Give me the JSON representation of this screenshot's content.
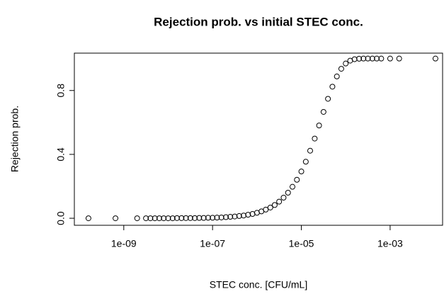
{
  "chart_data": {
    "type": "scatter",
    "title": "Rejection prob. vs initial STEC conc.",
    "x_label": "STEC conc.  [CFU/mL]",
    "y_label": "Rejection prob.",
    "xscale": "log",
    "color": "#000000",
    "xlim": [
      7.7e-11,
      0.0152
    ],
    "ylim": [
      -0.044,
      1.034
    ],
    "xticks": [
      {
        "value": 1e-09,
        "label": "1e-09"
      },
      {
        "value": 1e-07,
        "label": "1e-07"
      },
      {
        "value": 1e-05,
        "label": "1e-05"
      },
      {
        "value": 0.001,
        "label": "1e-03"
      }
    ],
    "yticks": [
      {
        "value": 0,
        "label": "0.0"
      },
      {
        "value": 0.4,
        "label": "0.4"
      },
      {
        "value": 0.8,
        "label": "0.8"
      }
    ],
    "x": [
      1.6e-10,
      6.5e-10,
      2e-09,
      3.16e-09,
      3.98e-09,
      5.01e-09,
      6.31e-09,
      7.94e-09,
      1e-08,
      1.26e-08,
      1.58e-08,
      2e-08,
      2.51e-08,
      3.16e-08,
      3.98e-08,
      5.01e-08,
      6.31e-08,
      7.94e-08,
      1e-07,
      1.26e-07,
      1.58e-07,
      2e-07,
      2.51e-07,
      3.16e-07,
      3.98e-07,
      5.01e-07,
      6.31e-07,
      7.94e-07,
      1e-06,
      1.26e-06,
      1.58e-06,
      2e-06,
      2.51e-06,
      3.16e-06,
      3.98e-06,
      5.01e-06,
      6.31e-06,
      7.94e-06,
      1e-05,
      1.26e-05,
      1.58e-05,
      2e-05,
      2.51e-05,
      3.16e-05,
      3.98e-05,
      5.01e-05,
      6.31e-05,
      7.94e-05,
      0.0001,
      0.000126,
      0.000158,
      0.0002,
      0.000251,
      0.000316,
      0.000398,
      0.000501,
      0.000631,
      0.001,
      0.0016,
      0.0105
    ],
    "values": [
      0,
      0,
      0,
      0,
      0,
      0,
      0,
      0,
      0,
      0,
      0.001,
      0.001,
      0.001,
      0.001,
      0.001,
      0.002,
      0.002,
      0.003,
      0.003,
      0.004,
      0.005,
      0.007,
      0.009,
      0.011,
      0.014,
      0.017,
      0.022,
      0.027,
      0.034,
      0.043,
      0.054,
      0.067,
      0.083,
      0.104,
      0.129,
      0.16,
      0.197,
      0.241,
      0.293,
      0.354,
      0.423,
      0.499,
      0.581,
      0.666,
      0.748,
      0.824,
      0.888,
      0.936,
      0.969,
      0.987,
      0.996,
      0.999,
      1,
      1,
      1,
      1,
      1,
      1,
      1,
      1
    ]
  }
}
